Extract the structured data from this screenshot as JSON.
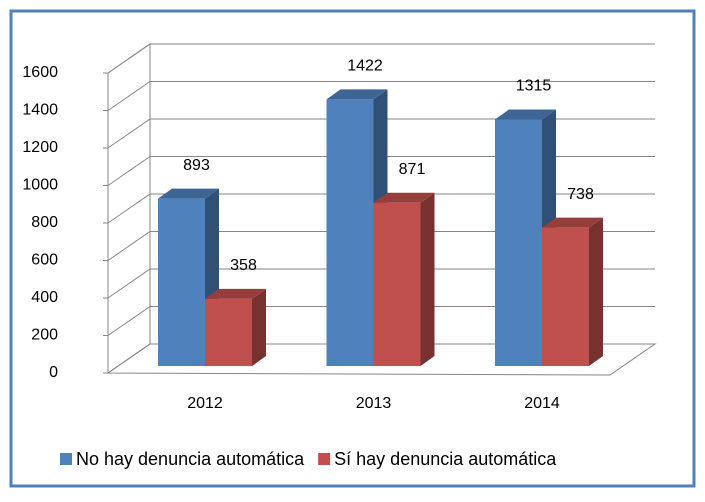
{
  "chart_data": {
    "type": "bar3d",
    "categories": [
      "2012",
      "2013",
      "2014"
    ],
    "series": [
      {
        "name": "No hay denuncia automática",
        "color": "#4f81bd",
        "values": [
          893,
          1422,
          1315
        ]
      },
      {
        "name": "Sí hay denuncia automática",
        "color": "#c0504d",
        "values": [
          358,
          871,
          738
        ]
      }
    ],
    "ylim": [
      0,
      1600
    ],
    "yticks": [
      0,
      200,
      400,
      600,
      800,
      1000,
      1200,
      1400,
      1600
    ],
    "grid": true,
    "legend": "bottom"
  }
}
